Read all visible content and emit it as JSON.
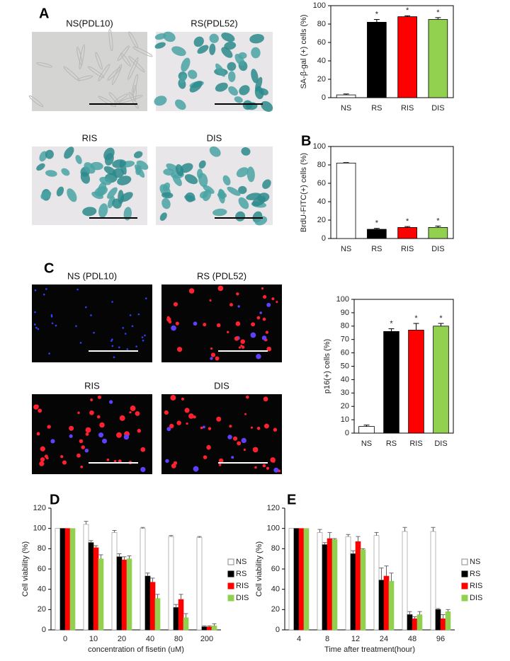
{
  "panel_labels": [
    "A",
    "B",
    "C",
    "D",
    "E"
  ],
  "micrographs": {
    "A": [
      "NS(PDL10)",
      "RS(PDL52)",
      "RIS",
      "DIS"
    ],
    "C": [
      "NS (PDL10)",
      "RS (PDL52)",
      "RIS",
      "DIS"
    ]
  },
  "chart_data": [
    {
      "type": "bar",
      "ylabel": "SA-β-gal (+) cells (%)",
      "categories": [
        "NS",
        "RS",
        "RIS",
        "DIS"
      ],
      "values": [
        3,
        82,
        88,
        85
      ],
      "errors": [
        1,
        3,
        1,
        2
      ],
      "colors": [
        "#ffffff",
        "#000000",
        "#ff0000",
        "#92d050"
      ],
      "significance": [
        null,
        "*",
        "*",
        "*"
      ],
      "ylim": [
        0,
        100
      ],
      "yticks": [
        0,
        20,
        40,
        60,
        80,
        100
      ]
    },
    {
      "type": "bar",
      "ylabel": "BrdU-FITC(+) cells (%)",
      "categories": [
        "NS",
        "RS",
        "RIS",
        "DIS"
      ],
      "values": [
        82,
        10,
        12,
        12
      ],
      "errors": [
        0.5,
        1,
        1,
        1.5
      ],
      "colors": [
        "#ffffff",
        "#000000",
        "#ff0000",
        "#92d050"
      ],
      "significance": [
        null,
        "*",
        "*",
        "*"
      ],
      "ylim": [
        0,
        100
      ],
      "yticks": [
        0,
        20,
        40,
        60,
        80,
        100
      ]
    },
    {
      "type": "bar",
      "ylabel": "p16(+) cells (%)",
      "categories": [
        "NS",
        "RS",
        "RIS",
        "DIS"
      ],
      "values": [
        5,
        76,
        77,
        80
      ],
      "errors": [
        1,
        2,
        5,
        2
      ],
      "colors": [
        "#ffffff",
        "#000000",
        "#ff0000",
        "#92d050"
      ],
      "significance": [
        null,
        "*",
        "*",
        "*"
      ],
      "ylim": [
        0,
        100
      ],
      "yticks": [
        0,
        10,
        20,
        30,
        40,
        50,
        60,
        70,
        80,
        90,
        100
      ]
    },
    {
      "type": "grouped_bar",
      "ylabel": "Cell viability (%)",
      "xlabel": "concentration of fisetin (uM)",
      "categories": [
        "0",
        "10",
        "20",
        "40",
        "80",
        "200"
      ],
      "ylim": [
        0,
        120
      ],
      "yticks": [
        0,
        20,
        40,
        60,
        80,
        100,
        120
      ],
      "series": [
        {
          "name": "NS",
          "color": "#ffffff",
          "values": [
            100,
            104,
            96,
            100,
            92,
            91
          ],
          "errors": [
            0,
            3,
            2,
            1,
            1,
            1
          ]
        },
        {
          "name": "RS",
          "color": "#000000",
          "values": [
            100,
            86,
            72,
            53,
            22,
            3
          ],
          "errors": [
            0,
            2,
            3,
            3,
            3,
            1
          ]
        },
        {
          "name": "RIS",
          "color": "#ff0000",
          "values": [
            100,
            81,
            69,
            47,
            30,
            3
          ],
          "errors": [
            0,
            2,
            3,
            4,
            5,
            1
          ]
        },
        {
          "name": "DIS",
          "color": "#92d050",
          "values": [
            100,
            70,
            70,
            31,
            12,
            4
          ],
          "errors": [
            0,
            4,
            3,
            4,
            4,
            2
          ]
        }
      ]
    },
    {
      "type": "grouped_bar",
      "ylabel": "Cell viability (%)",
      "xlabel": "Time after treatment(hour)",
      "categories": [
        "4",
        "8",
        "12",
        "24",
        "48",
        "96"
      ],
      "ylim": [
        0,
        120
      ],
      "yticks": [
        0,
        20,
        40,
        60,
        80,
        100,
        120
      ],
      "series": [
        {
          "name": "NS",
          "color": "#ffffff",
          "values": [
            100,
            96,
            92,
            93,
            97,
            97
          ],
          "errors": [
            0,
            3,
            2,
            3,
            4,
            4
          ]
        },
        {
          "name": "RS",
          "color": "#000000",
          "values": [
            100,
            84,
            75,
            49,
            15,
            20
          ],
          "errors": [
            0,
            2,
            3,
            12,
            3,
            1
          ]
        },
        {
          "name": "RIS",
          "color": "#ff0000",
          "values": [
            100,
            90,
            87,
            53,
            11,
            11
          ],
          "errors": [
            0,
            6,
            5,
            10,
            2,
            4
          ]
        },
        {
          "name": "DIS",
          "color": "#92d050",
          "values": [
            100,
            89,
            79,
            48,
            15,
            18
          ],
          "errors": [
            0,
            1,
            1,
            8,
            3,
            2
          ]
        }
      ]
    }
  ]
}
